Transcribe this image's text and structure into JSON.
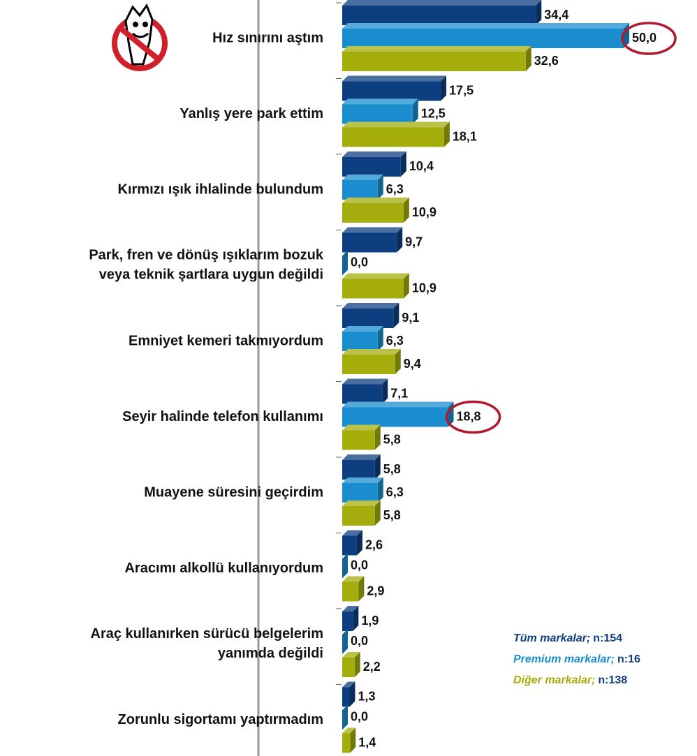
{
  "chart_data": {
    "type": "bar3d",
    "categories": [
      "Hız sınırını aştım",
      "Yanlış yere park ettim",
      "Kırmızı ışık ihlalinde bulundum",
      "Park, fren ve dönüş ışıklarım bozuk\nveya teknik şartlara uygun değildi",
      "Emniyet kemeri takmıyordum",
      "Seyir halinde telefon kullanımı",
      "Muayene süresini geçirdim",
      "Aracımı alkollü kullanıyordum",
      "Araç kullanırken sürücü belgelerim\nyanımda değildi",
      "Zorunlu sigortamı yaptırmadım"
    ],
    "series": [
      {
        "name": "Tüm markalar;",
        "note": "n:154",
        "color": "#0d3f80",
        "values": [
          34.4,
          17.5,
          10.4,
          9.7,
          9.1,
          7.1,
          5.8,
          2.6,
          1.9,
          1.3
        ],
        "value_labels": [
          "34,4",
          "17,5",
          "10,4",
          "9,7",
          "9,1",
          "7,1",
          "5,8",
          "2,6",
          "1,9",
          "1,3"
        ]
      },
      {
        "name": "Premium markalar;",
        "note": "n:16",
        "color": "#1a8dcf",
        "values": [
          50.0,
          12.5,
          6.3,
          0.0,
          6.3,
          18.8,
          6.3,
          0.0,
          0.0,
          0.0
        ],
        "value_labels": [
          "50,0",
          "12,5",
          "6,3",
          "0,0",
          "6,3",
          "18,8",
          "6,3",
          "0,0",
          "0,0",
          "0,0"
        ]
      },
      {
        "name": "Diğer markalar;",
        "note": "n:138",
        "color": "#a4ad0c",
        "values": [
          32.6,
          18.1,
          10.9,
          10.9,
          9.4,
          5.8,
          5.8,
          2.9,
          2.2,
          1.4
        ],
        "value_labels": [
          "32,6",
          "18,1",
          "10,9",
          "10,9",
          "9,4",
          "5,8",
          "5,8",
          "2,9",
          "2,2",
          "1,4"
        ]
      }
    ],
    "xlim": [
      0,
      50
    ],
    "highlight": [
      {
        "series": 1,
        "index": 0
      },
      {
        "series": 1,
        "index": 5
      }
    ]
  }
}
